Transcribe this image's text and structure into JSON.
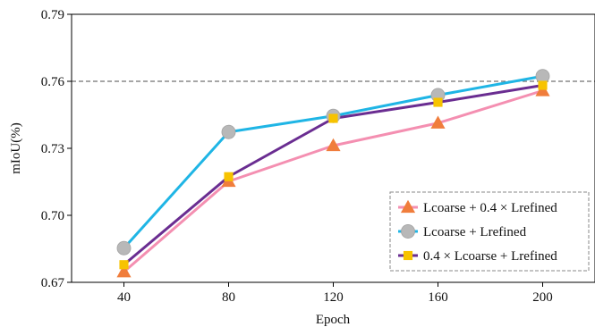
{
  "chart_data": {
    "type": "line",
    "xlabel": "Epoch",
    "ylabel": "mIoU(%)",
    "categories": [
      "40",
      "80",
      "120",
      "160",
      "200"
    ],
    "ylim": [
      0.67,
      0.79
    ],
    "yticks": [
      "0.67",
      "0.70",
      "0.73",
      "0.76",
      "0.79"
    ],
    "reference_line": {
      "y": 0.76,
      "style": "dashed",
      "color": "#707070"
    },
    "grid": false,
    "legend_position": "bottom-right",
    "series": [
      {
        "name": "Lcoarse + 0.4 × Lrefined",
        "color": "#f48fb1",
        "marker": "triangle",
        "marker_color": "#f07d3c",
        "values": [
          0.6747,
          0.7152,
          0.7312,
          0.7413,
          0.7558
        ]
      },
      {
        "name": "Lcoarse + Lrefined",
        "color": "#1fb5e5",
        "marker": "circle",
        "marker_color": "#b8b8b8",
        "values": [
          0.6853,
          0.7373,
          0.7445,
          0.7538,
          0.7623
        ]
      },
      {
        "name": "0.4 × Lcoarse + Lrefined",
        "color": "#6a2d91",
        "marker": "square",
        "marker_color": "#f7c300",
        "values": [
          0.6779,
          0.7173,
          0.7434,
          0.7506,
          0.7582
        ]
      }
    ]
  }
}
